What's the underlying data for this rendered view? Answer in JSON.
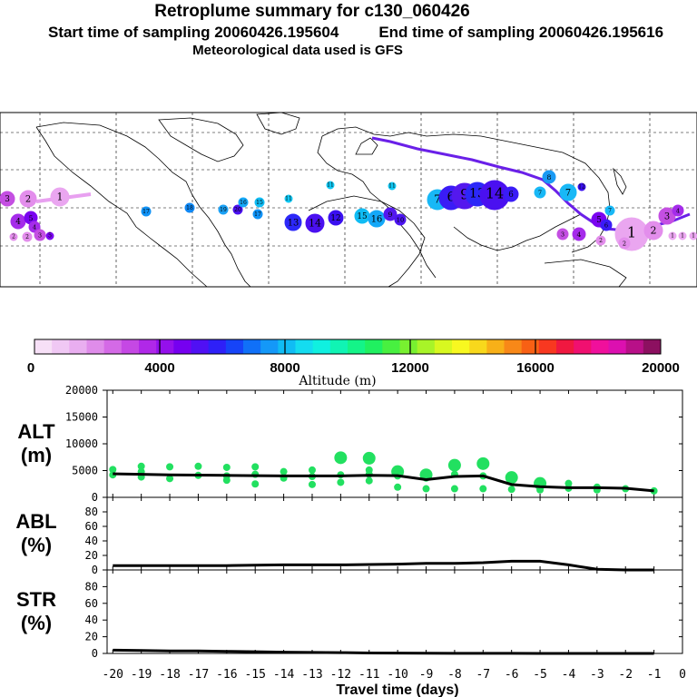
{
  "header": {
    "title": "Retroplume summary for c130_060426",
    "start_label": "Start time of sampling 20060426.195604",
    "end_label": "End time of sampling 20060426.195616",
    "met_label": "Meteorological data used is GFS"
  },
  "colorbar": {
    "label": "Altitude (m)",
    "ticks": [
      "0",
      "4000",
      "8000",
      "12000",
      "16000",
      "20000"
    ],
    "colors": [
      "#f7e0f7",
      "#f0c8f4",
      "#e9aef0",
      "#df8cea",
      "#d46ae6",
      "#c548e4",
      "#b028e8",
      "#9410ec",
      "#7600f0",
      "#5010f4",
      "#2e20f8",
      "#1644f8",
      "#1070f8",
      "#1498f8",
      "#10bcf4",
      "#14dcf0",
      "#10f0e0",
      "#10f4b4",
      "#14f488",
      "#20f060",
      "#48f040",
      "#78f030",
      "#a8f428",
      "#d8f820",
      "#f8f820",
      "#f8d81c",
      "#f8b018",
      "#f88818",
      "#f86014",
      "#f83820",
      "#f01840",
      "#f01070",
      "#f0109c",
      "#dc10b0",
      "#b81088",
      "#8c1060"
    ]
  },
  "map": {
    "name": "world-map",
    "clusters": [
      {
        "label": "1",
        "color": "#eaa6f0"
      },
      {
        "label": "2",
        "color": "#e38eec"
      },
      {
        "label": "3",
        "color": "#c44fe2"
      },
      {
        "label": "4",
        "color": "#a52cea"
      },
      {
        "label": "5",
        "color": "#7a04f0"
      },
      {
        "label": "6",
        "color": "#3a1cf6"
      },
      {
        "label": "7",
        "color": "#18b8f6"
      },
      {
        "label": "8",
        "color": "#1a9af4"
      },
      {
        "label": "9",
        "color": "#5418ee"
      },
      {
        "label": "10",
        "color": "#4c14f0"
      },
      {
        "label": "11",
        "color": "#10c8f4"
      },
      {
        "label": "12",
        "color": "#3a10f0"
      },
      {
        "label": "13",
        "color": "#2c28f8"
      },
      {
        "label": "14",
        "color": "#4a10f0"
      },
      {
        "label": "15",
        "color": "#10bcf4"
      },
      {
        "label": "16",
        "color": "#14a8f8"
      },
      {
        "label": "17",
        "color": "#1092f6"
      },
      {
        "label": "18",
        "color": "#1088f4"
      },
      {
        "label": "19",
        "color": "#1aa0f4"
      },
      {
        "label": "20",
        "color": "#4a10ee"
      }
    ]
  },
  "chart_data": [
    {
      "type": "line",
      "panel": "ALT",
      "ylabel": "ALT (m)",
      "ylabel_top": "ALT",
      "ylabel_unit": "(m)",
      "ylim": [
        0,
        20000
      ],
      "yticks": [
        0,
        5000,
        10000,
        15000,
        20000
      ],
      "x": [
        -20,
        -19,
        -18,
        -17,
        -16,
        -15,
        -14,
        -13,
        -12,
        -11,
        -10,
        -9,
        -8,
        -7,
        -6,
        -5,
        -4,
        -3,
        -2,
        -1
      ],
      "series": [
        {
          "name": "mean altitude",
          "values": [
            4400,
            4300,
            4200,
            4150,
            4100,
            4050,
            4000,
            4000,
            4000,
            4100,
            4050,
            3300,
            3900,
            4000,
            2400,
            2000,
            1800,
            1800,
            1700,
            1200
          ]
        }
      ],
      "scatter": [
        {
          "x": -20,
          "y": [
            5200,
            4200
          ]
        },
        {
          "x": -19,
          "y": [
            5800,
            4800,
            3800
          ]
        },
        {
          "x": -18,
          "y": [
            5700,
            3500
          ]
        },
        {
          "x": -17,
          "y": [
            5800,
            4100
          ]
        },
        {
          "x": -16,
          "y": [
            5600,
            4000,
            3200
          ]
        },
        {
          "x": -15,
          "y": [
            5700,
            4300,
            2500
          ]
        },
        {
          "x": -14,
          "y": [
            4800,
            3600
          ]
        },
        {
          "x": -13,
          "y": [
            5100,
            3900,
            2400
          ]
        },
        {
          "x": -12,
          "y": [
            7400,
            4200,
            2800
          ]
        },
        {
          "x": -11,
          "y": [
            7300,
            5100,
            4300,
            3100
          ]
        },
        {
          "x": -10,
          "y": [
            4800,
            4000,
            1900
          ]
        },
        {
          "x": -9,
          "y": [
            4200,
            3600,
            1600
          ]
        },
        {
          "x": -8,
          "y": [
            6000,
            4300,
            1600
          ]
        },
        {
          "x": -7,
          "y": [
            6300,
            4000,
            1600
          ]
        },
        {
          "x": -6,
          "y": [
            3700,
            1500
          ]
        },
        {
          "x": -5,
          "y": [
            2600,
            2100,
            1400
          ]
        },
        {
          "x": -4,
          "y": [
            2600,
            1700
          ]
        },
        {
          "x": -3,
          "y": [
            1900,
            1400
          ]
        },
        {
          "x": -2,
          "y": [
            1600
          ]
        },
        {
          "x": -1,
          "y": [
            1200
          ]
        }
      ]
    },
    {
      "type": "line",
      "panel": "ABL",
      "ylabel": "ABL (%)",
      "ylabel_top": "ABL",
      "ylabel_unit": "(%)",
      "ylim": [
        0,
        100
      ],
      "yticks": [
        0,
        20,
        40,
        60,
        80
      ],
      "x": [
        -20,
        -19,
        -18,
        -17,
        -16,
        -15,
        -14,
        -13,
        -12,
        -11,
        -10,
        -9,
        -8,
        -7,
        -6,
        -5,
        -4,
        -3,
        -2,
        -1
      ],
      "series": [
        {
          "name": "ABL fraction",
          "values": [
            6,
            6,
            6,
            6,
            6,
            6.5,
            7,
            7,
            7,
            7.5,
            8,
            9,
            9,
            10,
            12,
            12,
            7,
            1,
            0,
            0
          ]
        }
      ]
    },
    {
      "type": "line",
      "panel": "STR",
      "ylabel": "STR (%)",
      "ylabel_top": "STR",
      "ylabel_unit": "(%)",
      "ylim": [
        0,
        100
      ],
      "yticks": [
        0,
        20,
        40,
        60,
        80
      ],
      "x": [
        -20,
        -19,
        -18,
        -17,
        -16,
        -15,
        -14,
        -13,
        -12,
        -11,
        -10,
        -9,
        -8,
        -7,
        -6,
        -5,
        -4,
        -3,
        -2,
        -1
      ],
      "series": [
        {
          "name": "stratospheric fraction",
          "values": [
            4,
            3.5,
            3,
            3,
            2.5,
            2,
            1.5,
            1.2,
            1,
            0.6,
            0.4,
            0.3,
            0.2,
            0.2,
            0.1,
            0,
            0,
            0,
            0,
            0
          ]
        }
      ],
      "xlabel": "Travel time (days)",
      "xticks": [
        -20,
        -19,
        -18,
        -17,
        -16,
        -15,
        -14,
        -13,
        -12,
        -11,
        -10,
        -9,
        -8,
        -7,
        -6,
        -5,
        -4,
        -3,
        -2,
        -1,
        0
      ]
    }
  ]
}
